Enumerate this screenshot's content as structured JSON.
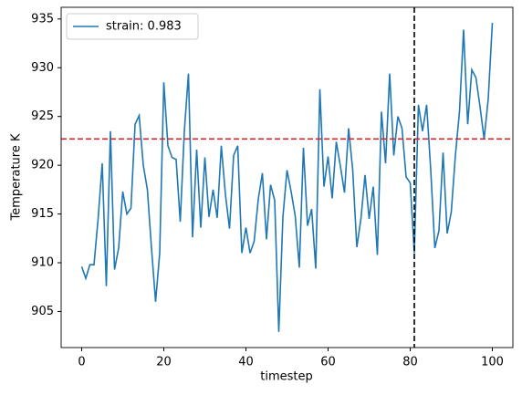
{
  "chart_data": {
    "type": "line",
    "x": [
      0,
      1,
      2,
      3,
      4,
      5,
      6,
      7,
      8,
      9,
      10,
      11,
      12,
      13,
      14,
      15,
      16,
      17,
      18,
      19,
      20,
      21,
      22,
      23,
      24,
      25,
      26,
      27,
      28,
      29,
      30,
      31,
      32,
      33,
      34,
      35,
      36,
      37,
      38,
      39,
      40,
      41,
      42,
      43,
      44,
      45,
      46,
      47,
      48,
      49,
      50,
      51,
      52,
      53,
      54,
      55,
      56,
      57,
      58,
      59,
      60,
      61,
      62,
      63,
      64,
      65,
      66,
      67,
      68,
      69,
      70,
      71,
      72,
      73,
      74,
      75,
      76,
      77,
      78,
      79,
      80,
      81,
      82,
      83,
      84,
      85,
      86,
      87,
      88,
      89,
      90,
      91,
      92,
      93,
      94,
      95,
      96,
      97,
      98,
      99,
      100
    ],
    "series": [
      {
        "name": "strain: 0.983",
        "color": "#1f77b4",
        "values": [
          909.6,
          908.4,
          909.8,
          909.8,
          914.5,
          920.2,
          907.6,
          923.5,
          909.3,
          911.5,
          917.3,
          915.0,
          915.6,
          924.2,
          925.1,
          920.0,
          917.5,
          911.5,
          906.0,
          911.0,
          928.5,
          922.0,
          920.8,
          920.6,
          914.2,
          923.5,
          929.4,
          912.6,
          921.6,
          913.6,
          920.8,
          914.7,
          917.5,
          914.6,
          922.0,
          917.0,
          913.5,
          921.0,
          922.0,
          911.0,
          913.6,
          911.0,
          912.2,
          916.5,
          919.2,
          912.4,
          918.0,
          916.4,
          902.9,
          914.7,
          919.5,
          917.3,
          914.8,
          909.5,
          921.8,
          913.8,
          915.5,
          909.4,
          927.8,
          917.8,
          920.9,
          916.6,
          922.4,
          919.9,
          917.2,
          923.8,
          919.5,
          911.6,
          914.5,
          919.0,
          914.5,
          917.8,
          910.8,
          925.5,
          920.2,
          929.4,
          921.0,
          925.0,
          923.8,
          918.8,
          918.2,
          911.0,
          926.2,
          923.5,
          926.2,
          919.5,
          911.5,
          913.3,
          921.3,
          913.0,
          915.2,
          921.0,
          925.5,
          933.9,
          924.2,
          929.8,
          929.0,
          926.0,
          922.7,
          926.8,
          934.6
        ]
      }
    ],
    "xlabel": "timestep",
    "ylabel": "Temperature K",
    "xlim": [
      -5,
      105
    ],
    "xticks": [
      0,
      20,
      40,
      60,
      80,
      100
    ],
    "ylim": [
      901.3,
      936.2
    ],
    "yticks": [
      905,
      910,
      915,
      920,
      925,
      930,
      935
    ],
    "hline": {
      "value": 922.7,
      "color": "#d62728"
    },
    "vline": {
      "value": 81,
      "color": "#000000"
    },
    "legend": "upper left"
  }
}
